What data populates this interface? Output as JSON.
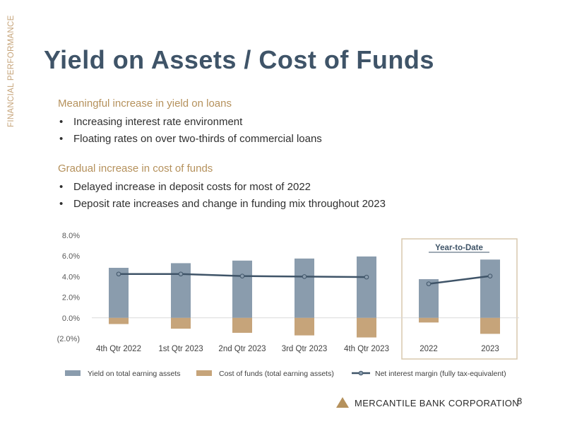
{
  "side_label": "FINANCIAL PERFORMANCE",
  "title": "Yield on Assets / Cost of Funds",
  "sections": [
    {
      "heading": "Meaningful increase in yield on loans",
      "bullets": [
        "Increasing interest rate environment",
        "Floating rates on over two-thirds of commercial loans"
      ]
    },
    {
      "heading": "Gradual increase in cost of funds",
      "bullets": [
        "Delayed increase in deposit costs for most of 2022",
        "Deposit rate increases and change in funding mix throughout 2023"
      ]
    }
  ],
  "bullet_glyph": "•",
  "chart_data": {
    "type": "bar",
    "categories": [
      "4th Qtr 2022",
      "1st Qtr 2023",
      "2nd Qtr 2023",
      "3rd Qtr 2023",
      "4th Qtr 2023",
      "2022",
      "2023"
    ],
    "series": [
      {
        "name": "Yield on total earning assets",
        "kind": "bar",
        "color": "#8a9cad",
        "values": [
          4.85,
          5.3,
          5.55,
          5.75,
          5.95,
          3.75,
          5.65
        ]
      },
      {
        "name": "Cost of funds (total earning assets)",
        "kind": "bar",
        "color": "#c6a47a",
        "values": [
          -0.6,
          -1.05,
          -1.45,
          -1.7,
          -1.9,
          -0.45,
          -1.55
        ]
      },
      {
        "name": "Net interest margin (fully tax-equivalent)",
        "kind": "line",
        "color": "#3f5468",
        "values": [
          4.25,
          4.25,
          4.05,
          4.0,
          3.95,
          3.3,
          4.05
        ]
      }
    ],
    "line_breaks_after_index": 4,
    "ylim": [
      -2.0,
      8.0
    ],
    "yticks": [
      8.0,
      6.0,
      4.0,
      2.0,
      0.0,
      -2.0
    ],
    "ytick_labels": [
      "8.0%",
      "6.0%",
      "4.0%",
      "2.0%",
      "0.0%",
      "(2.0%)"
    ],
    "annotation": "Year-to-Date",
    "annotation_covers": [
      "2022",
      "2023"
    ],
    "legend_position": "bottom"
  },
  "footer": {
    "company": "MERCANTILE BANK CORPORATION",
    "page_number": "8",
    "brand_color": "#b5915c"
  }
}
